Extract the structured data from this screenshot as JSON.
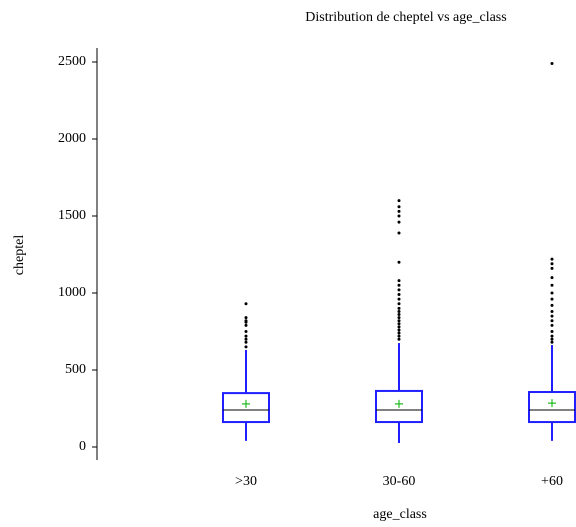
{
  "chart_data": {
    "type": "box",
    "title": "Distribution de cheptel vs age_class",
    "x_label": "age_class",
    "y_label": "cheptel",
    "categories": [
      ">30",
      "30-60",
      "+60"
    ],
    "ylim": [
      0,
      2500
    ],
    "yticks": [
      0,
      500,
      1000,
      1500,
      2000,
      2500
    ],
    "box_color": "#1f1fff",
    "mean_color": "#22bb22",
    "median_color": "#000000",
    "outlier_color": "#000000",
    "boxes": [
      {
        "whislo": 40,
        "q1": 162,
        "median": 240,
        "q3": 350,
        "whishi": 630,
        "mean": 280,
        "outliers": [
          650,
          680,
          700,
          720,
          750,
          790,
          810,
          820,
          840,
          930
        ]
      },
      {
        "whislo": 26,
        "q1": 162,
        "median": 240,
        "q3": 364,
        "whishi": 675,
        "mean": 280,
        "outliers": [
          700,
          720,
          740,
          760,
          780,
          800,
          820,
          840,
          860,
          880,
          900,
          930,
          960,
          990,
          1020,
          1050,
          1080,
          1200,
          1390,
          1460,
          1500,
          1530,
          1560,
          1600
        ]
      },
      {
        "whislo": 40,
        "q1": 162,
        "median": 240,
        "q3": 357,
        "whishi": 662,
        "mean": 285,
        "outliers": [
          680,
          700,
          720,
          750,
          790,
          820,
          850,
          880,
          920,
          960,
          1000,
          1050,
          1100,
          1160,
          1190,
          1220,
          2490
        ]
      }
    ]
  }
}
